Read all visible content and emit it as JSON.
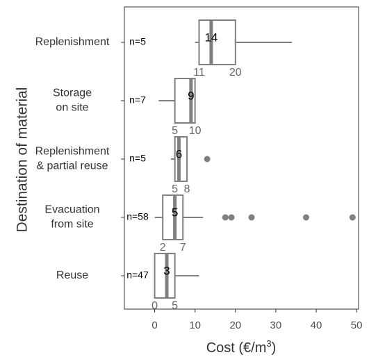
{
  "chart_data": {
    "type": "box",
    "ylabel": "Destination of material",
    "xlabel": "Cost (€/m³)",
    "xlabel_main": "Cost (€/m",
    "xlabel_sup": "3",
    "xlabel_close": ")",
    "xlim": [
      -7.5,
      50.5
    ],
    "xticks": [
      0,
      10,
      20,
      30,
      40,
      50
    ],
    "grid": false,
    "series_color": "#808080",
    "categories": [
      {
        "label_lines": [
          "Replenishment"
        ],
        "n_label": "n=5",
        "q1": 11,
        "median": 14,
        "q3": 20,
        "whisker_low": 10,
        "whisker_high": 34,
        "outliers": [],
        "median_label": "14",
        "q1_label": "11",
        "q3_label": "20"
      },
      {
        "label_lines": [
          "Storage",
          "on site"
        ],
        "n_label": "n=7",
        "q1": 5,
        "median": 9,
        "q3": 10,
        "whisker_low": 1,
        "whisker_high": 10,
        "outliers": [],
        "median_label": "9",
        "q1_label": "5",
        "q3_label": "10"
      },
      {
        "label_lines": [
          "Replenishment",
          "& partial reuse"
        ],
        "n_label": "n=5",
        "q1": 5,
        "median": 6,
        "q3": 8,
        "whisker_low": 4,
        "whisker_high": 8,
        "outliers": [
          13
        ],
        "median_label": "6",
        "q1_label": "5",
        "q3_label": "8"
      },
      {
        "label_lines": [
          "Evacuation",
          "from site"
        ],
        "n_label": "n=58",
        "q1": 2,
        "median": 5,
        "q3": 7,
        "whisker_low": 0,
        "whisker_high": 12,
        "outliers": [
          17.5,
          19,
          24,
          37.5,
          49
        ],
        "median_label": "5",
        "q1_label": "2",
        "q3_label": "7"
      },
      {
        "label_lines": [
          "Reuse"
        ],
        "n_label": "n=47",
        "q1": 0,
        "median": 3,
        "q3": 5,
        "whisker_low": 0,
        "whisker_high": 11,
        "outliers": [],
        "median_label": "3",
        "q1_label": "0",
        "q3_label": "5"
      }
    ]
  }
}
